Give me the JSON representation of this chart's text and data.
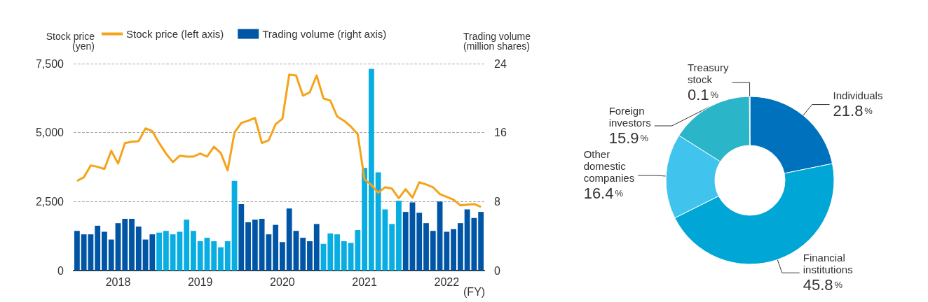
{
  "chart_data": [
    {
      "type": "bar",
      "xlabel": "(FY)",
      "ylabel": "Stock price\n(yen)",
      "y2label": "Trading volume\n(million shares)",
      "legend": "top",
      "grid": "y",
      "categories": [
        null,
        null,
        null,
        null,
        null,
        null,
        "2018",
        null,
        null,
        null,
        null,
        null,
        null,
        null,
        null,
        null,
        null,
        null,
        "2019",
        null,
        null,
        null,
        null,
        null,
        null,
        null,
        null,
        null,
        null,
        null,
        "2020",
        null,
        null,
        null,
        null,
        null,
        null,
        null,
        null,
        null,
        null,
        null,
        "2021",
        null,
        null,
        null,
        null,
        null,
        null,
        null,
        null,
        null,
        null,
        null,
        "2022",
        null,
        null,
        null,
        null,
        null
      ],
      "ylim": [
        0,
        7500
      ],
      "yticks": [
        0,
        {
          "value": 2500,
          "label": "2,500"
        },
        {
          "value": 5000,
          "label": "5,000"
        },
        {
          "value": 7500,
          "label": "7,500"
        }
      ],
      "y2lim": [
        0,
        24
      ],
      "y2ticks": [
        0,
        8,
        16,
        24
      ],
      "series": [
        {
          "name": "Stock price (left axis)",
          "type": "line",
          "color": "#f5a31a",
          "values": [
            3250,
            3380,
            3810,
            3760,
            3680,
            4340,
            3880,
            4620,
            4670,
            4690,
            5150,
            5050,
            4620,
            4240,
            3930,
            4160,
            4130,
            4130,
            4240,
            4130,
            4490,
            4260,
            3630,
            5000,
            5350,
            5430,
            5530,
            4620,
            4720,
            5300,
            5500,
            7100,
            7070,
            6340,
            6460,
            7070,
            6240,
            6160,
            5580,
            5430,
            5220,
            4940,
            3300,
            3100,
            2820,
            3020,
            2970,
            2620,
            2950,
            2640,
            3200,
            3120,
            3020,
            2770,
            2670,
            2570,
            2360,
            2390,
            2410,
            2310
          ]
        },
        {
          "name": "Trading volume (right axis)",
          "type": "bar",
          "axis": "y2",
          "color": "#0055a5",
          "colors": [
            "#0055a5",
            "#0055a5",
            "#0055a5",
            "#0055a5",
            "#0055a5",
            "#0055a5",
            "#0055a5",
            "#0055a5",
            "#0055a5",
            "#0055a5",
            "#0055a5",
            "#0055a5",
            "#08ade2",
            "#08ade2",
            "#08ade2",
            "#08ade2",
            "#08ade2",
            "#08ade2",
            "#08ade2",
            "#08ade2",
            "#08ade2",
            "#08ade2",
            "#08ade2",
            "#08ade2",
            "#0055a5",
            "#0055a5",
            "#0055a5",
            "#0055a5",
            "#0055a5",
            "#0055a5",
            "#0055a5",
            "#0055a5",
            "#0055a5",
            "#0055a5",
            "#0055a5",
            "#0055a5",
            "#08ade2",
            "#08ade2",
            "#08ade2",
            "#08ade2",
            "#08ade2",
            "#08ade2",
            "#08ade2",
            "#08ade2",
            "#08ade2",
            "#08ade2",
            "#08ade2",
            "#08ade2",
            "#0055a5",
            "#0055a5",
            "#0055a5",
            "#0055a5",
            "#0055a5",
            "#0055a5",
            "#0055a5",
            "#0055a5",
            "#0055a5",
            "#0055a5",
            "#0055a5",
            "#0055a5"
          ],
          "values": [
            4.6,
            4.2,
            4.2,
            5.2,
            4.5,
            3.6,
            5.5,
            6.0,
            6.0,
            5.1,
            3.6,
            4.2,
            4.4,
            4.6,
            4.2,
            4.5,
            5.9,
            4.6,
            3.4,
            3.8,
            3.4,
            2.7,
            3.4,
            10.4,
            7.7,
            5.6,
            5.9,
            6.0,
            4.2,
            5.3,
            3.3,
            7.2,
            4.6,
            3.8,
            3.4,
            5.4,
            3.1,
            4.3,
            4.2,
            3.4,
            3.2,
            4.7,
            11.9,
            23.4,
            11.4,
            7.1,
            5.4,
            8.1,
            6.8,
            7.9,
            6.7,
            5.5,
            4.6,
            8.0,
            4.5,
            4.8,
            5.5,
            7.1,
            6.1,
            6.8
          ]
        }
      ]
    },
    {
      "type": "donut",
      "value_labels": [
        "21.8%",
        "45.8%",
        "16.4%",
        "15.9%",
        "0.1%"
      ],
      "categories": [
        "Individuals",
        "Financial institutions",
        "Other domestic companies",
        "Foreign investors",
        "Treasury stock"
      ],
      "values": [
        21.8,
        45.8,
        16.4,
        15.9,
        0.1
      ],
      "colors": [
        "#0071bc",
        "#00a6d6",
        "#40c4ee",
        "#2bb5c8",
        "#0071bc"
      ]
    }
  ]
}
